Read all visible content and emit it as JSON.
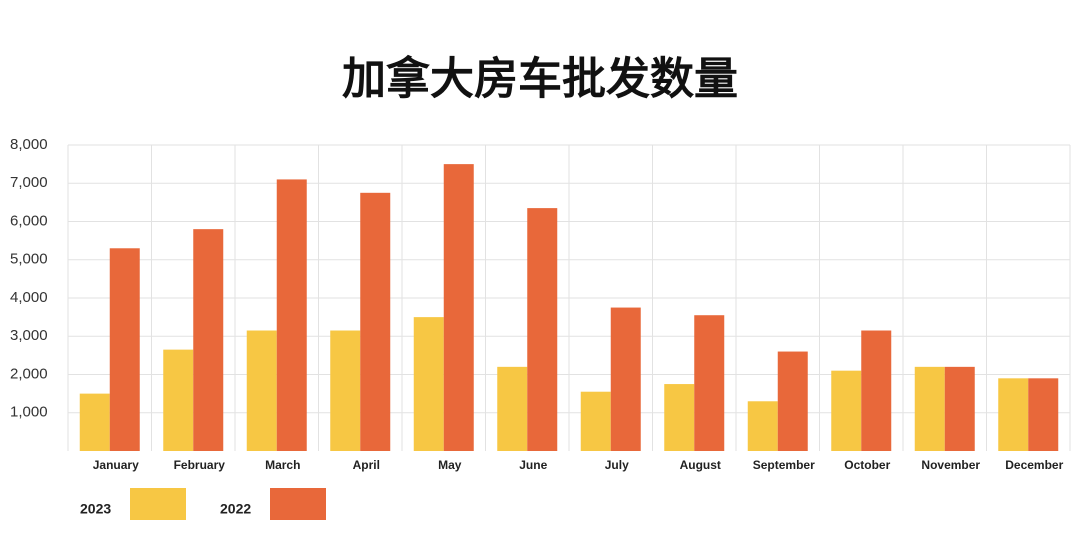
{
  "chart_data": {
    "type": "bar",
    "title": "加拿大房车批发数量",
    "categories": [
      "January",
      "February",
      "March",
      "April",
      "May",
      "June",
      "July",
      "August",
      "September",
      "October",
      "November",
      "December"
    ],
    "series": [
      {
        "name": "2023",
        "color": "#f7c744",
        "values": [
          1500,
          2650,
          3150,
          3150,
          3500,
          2200,
          1550,
          1750,
          1300,
          2100,
          2200,
          1900
        ]
      },
      {
        "name": "2022",
        "color": "#e8683a",
        "values": [
          5300,
          5800,
          7100,
          6750,
          7500,
          6350,
          3750,
          3550,
          2600,
          3150,
          2200,
          1900
        ]
      }
    ],
    "ylim": [
      0,
      8000
    ],
    "yticks": [
      {
        "value": 1000,
        "label": "1,000"
      },
      {
        "value": 2000,
        "label": "2,000"
      },
      {
        "value": 3000,
        "label": "3,000"
      },
      {
        "value": 4000,
        "label": "4,000"
      },
      {
        "value": 5000,
        "label": "5,000"
      },
      {
        "value": 6000,
        "label": "6,000"
      },
      {
        "value": 7000,
        "label": "7,000"
      },
      {
        "value": 8000,
        "label": "8,000"
      }
    ],
    "grid": true,
    "legend": "bottom-left"
  }
}
